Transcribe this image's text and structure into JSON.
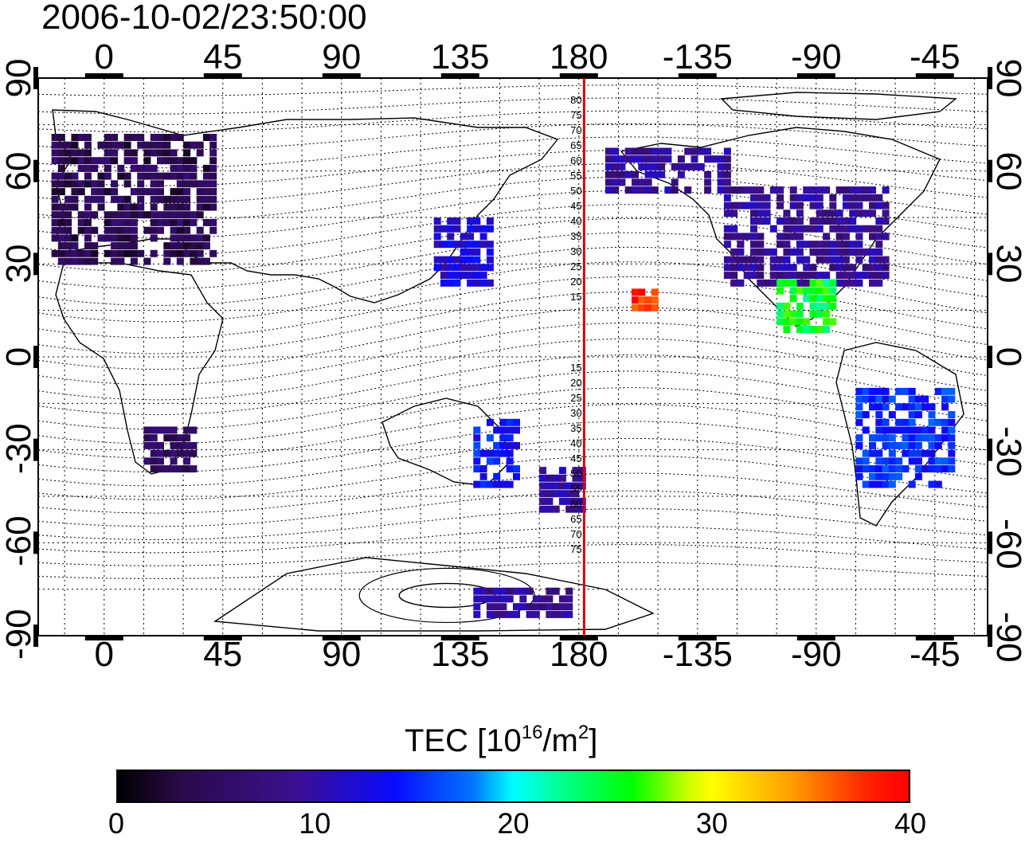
{
  "timestamp": "2006-10-02/23:50:00",
  "axes": {
    "top_ticks": [
      "0",
      "45",
      "90",
      "135",
      "180",
      "-135",
      "-90",
      "-45"
    ],
    "bottom_ticks": [
      "0",
      "45",
      "90",
      "135",
      "180",
      "-135",
      "-90",
      "-45"
    ],
    "left_ticks": [
      "90",
      "60",
      "30",
      "0",
      "-30",
      "-60",
      "-90"
    ],
    "right_ticks": [
      "90",
      "60",
      "30",
      "0",
      "-30",
      "-60",
      "-90"
    ],
    "lon_range": [
      -25,
      335
    ],
    "lat_range": [
      -90,
      90
    ]
  },
  "dateline": {
    "longitude": 182,
    "color": "#e00000",
    "labels_north": [
      "80",
      "75",
      "70",
      "65",
      "60",
      "55",
      "50",
      "45",
      "40",
      "35",
      "30",
      "25",
      "20",
      "15"
    ],
    "labels_south": [
      "15",
      "20",
      "25",
      "30",
      "35",
      "40",
      "45",
      "50",
      "55",
      "60",
      "65",
      "70",
      "75"
    ]
  },
  "colorbar": {
    "title_main": "TEC  [10",
    "title_exp": "16",
    "title_unit": "/m",
    "title_exp2": "2",
    "title_end": "]",
    "ticks": [
      "0",
      "10",
      "20",
      "30",
      "40"
    ],
    "range": [
      0,
      40
    ]
  },
  "tec_regions": [
    {
      "region": "europe",
      "lon": [
        -20,
        40
      ],
      "lat": [
        32,
        72
      ],
      "tec": 4
    },
    {
      "region": "north-america",
      "lon": [
        -125,
        -65
      ],
      "lat": [
        25,
        55
      ],
      "tec": 9
    },
    {
      "region": "alaska",
      "lon": [
        -170,
        -125
      ],
      "lat": [
        55,
        68
      ],
      "tec": 9
    },
    {
      "region": "japan",
      "lon": [
        125,
        145
      ],
      "lat": [
        25,
        45
      ],
      "tec": 12
    },
    {
      "region": "central-america",
      "lon": [
        -105,
        -85
      ],
      "lat": [
        10,
        25
      ],
      "tec": 25
    },
    {
      "region": "south-america",
      "lon": [
        -75,
        -40
      ],
      "lat": [
        -40,
        -10
      ],
      "tec": 15
    },
    {
      "region": "hawaii",
      "lon": [
        -160,
        -152
      ],
      "lat": [
        17,
        22
      ],
      "tec": 38
    },
    {
      "region": "australia-east",
      "lon": [
        140,
        155
      ],
      "lat": [
        -40,
        -20
      ],
      "tec": 14
    },
    {
      "region": "new-zealand",
      "lon": [
        165,
        180
      ],
      "lat": [
        -48,
        -34
      ],
      "tec": 10
    },
    {
      "region": "south-africa",
      "lon": [
        15,
        33
      ],
      "lat": [
        -35,
        -22
      ],
      "tec": 5
    },
    {
      "region": "antarctica",
      "lon": [
        140,
        175
      ],
      "lat": [
        -82,
        -74
      ],
      "tec": 9
    }
  ]
}
